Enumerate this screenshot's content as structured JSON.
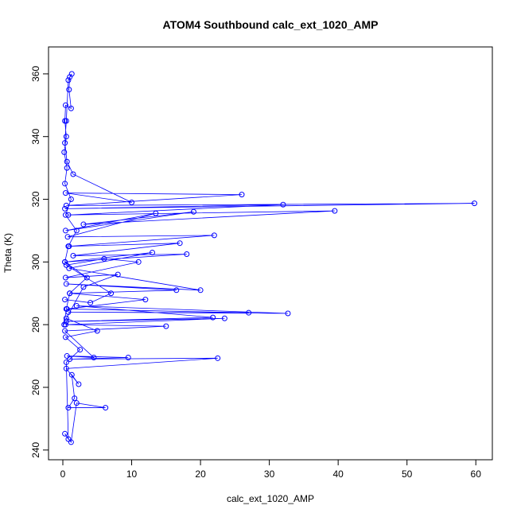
{
  "chart_data": {
    "type": "line",
    "title": "ATOM4 Southbound calc_ext_1020_AMP",
    "xlabel": "calc_ext_1020_AMP",
    "ylabel": "Theta (K)",
    "color": "#0000ff",
    "x": [
      0.2,
      0.5,
      1.0,
      3.5,
      0.3,
      0.8,
      2.0,
      0.4,
      1.2,
      0.3,
      0.6,
      0.2,
      0.5,
      0.3,
      0.4,
      1.2,
      0.9,
      1.0,
      1.3,
      0.8,
      0.5,
      0.3,
      0.6,
      1.5,
      10.0,
      0.4,
      26,
      0.5,
      59.8,
      0.3,
      32,
      0.8,
      39.5,
      3,
      19,
      0.4,
      13.5,
      0.7,
      22,
      0.9,
      17,
      1.5,
      18,
      0.3,
      13,
      0.9,
      20,
      0.5,
      16.5,
      1.0,
      12,
      0.6,
      27,
      0.8,
      32.7,
      2,
      21.8,
      0.5,
      23.5,
      0.4,
      15,
      0.3,
      4.5,
      0.6,
      9.5,
      1.0,
      22.5,
      0.5,
      2.3,
      1.3,
      1.7,
      0.8,
      6.2,
      2.0,
      1.2,
      0.3,
      0.8,
      0.5,
      2.5,
      0.4,
      5.0,
      0.5,
      3.0,
      8,
      0.4,
      11,
      6,
      0.5,
      7,
      4,
      0.3
    ],
    "values": [
      280,
      285,
      290,
      295,
      300,
      305,
      310,
      315,
      320,
      325,
      330,
      335,
      340,
      345,
      350,
      349,
      355,
      359,
      360,
      358,
      345,
      338,
      332,
      328,
      319,
      322,
      321.5,
      318,
      318.7,
      317,
      318.3,
      315,
      316.3,
      312,
      316,
      310,
      315.5,
      308,
      308.5,
      305,
      306,
      302,
      302.5,
      300,
      303,
      298,
      291,
      293,
      291,
      290,
      288,
      285,
      283.8,
      284,
      283.6,
      286,
      282.3,
      281,
      282,
      280,
      279.5,
      278,
      269.5,
      270,
      269.5,
      269,
      269.3,
      266,
      261,
      264,
      256.5,
      253.5,
      253.5,
      255,
      242.5,
      245.2,
      243.5,
      268,
      272,
      276,
      278,
      282,
      292,
      296,
      295,
      300,
      301,
      299,
      290,
      287,
      288
    ],
    "xlim": [
      -2.08,
      62.4
    ],
    "ylim": [
      236.9,
      368.6
    ],
    "xticks": [
      0,
      10,
      20,
      30,
      40,
      50,
      60
    ],
    "yticks": [
      240,
      260,
      280,
      300,
      320,
      340,
      360
    ]
  }
}
